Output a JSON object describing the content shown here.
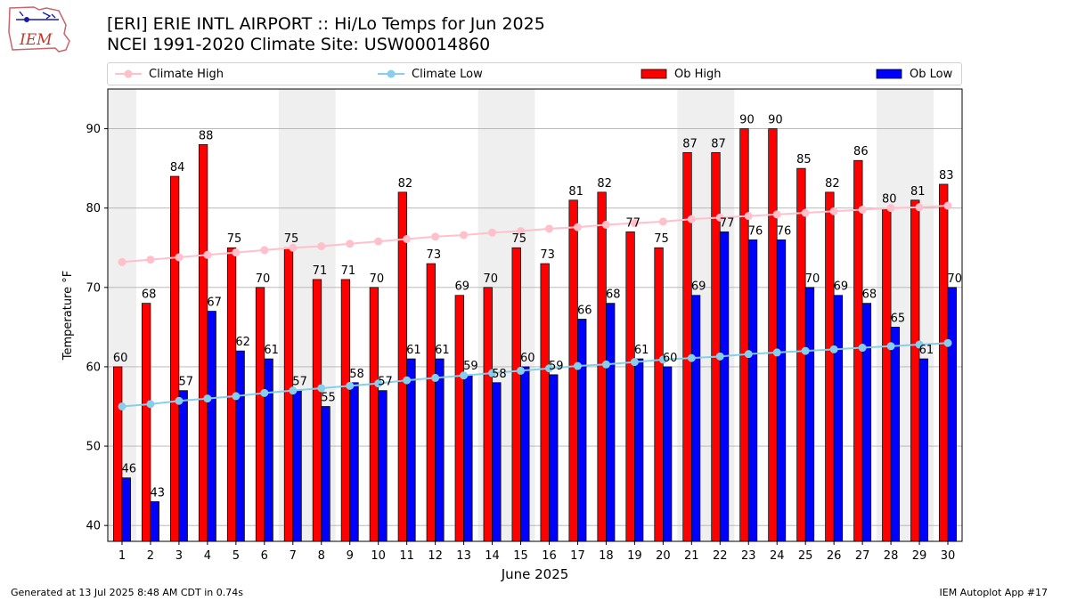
{
  "header": {
    "logo_text": "IEM",
    "title_line1": "[ERI] ERIE INTL AIRPORT :: Hi/Lo Temps for Jun 2025",
    "title_line2": "NCEI 1991-2020 Climate Site: USW00014860"
  },
  "legend": {
    "items": [
      {
        "label": "Climate High",
        "kind": "line-marker",
        "color": "#ffc0cb"
      },
      {
        "label": "Climate Low",
        "kind": "line-marker",
        "color": "#87ceeb"
      },
      {
        "label": "Ob High",
        "kind": "bar",
        "color": "#ff0000"
      },
      {
        "label": "Ob Low",
        "kind": "bar",
        "color": "#0000ff"
      }
    ],
    "placement": "top, horizontal"
  },
  "footer": {
    "left": "Generated at 13 Jul 2025 8:48 AM CDT in 0.74s",
    "right": "IEM Autoplot App #17"
  },
  "chart_data": {
    "type": "bar",
    "title": "[ERI] ERIE INTL AIRPORT :: Hi/Lo Temps for Jun 2025",
    "subtitle": "NCEI 1991-2020 Climate Site: USW00014860",
    "xlabel": "June 2025",
    "ylabel": "Temperature °F",
    "categories": [
      "1",
      "2",
      "3",
      "4",
      "5",
      "6",
      "7",
      "8",
      "9",
      "10",
      "11",
      "12",
      "13",
      "14",
      "15",
      "16",
      "17",
      "18",
      "19",
      "20",
      "21",
      "22",
      "23",
      "24",
      "25",
      "26",
      "27",
      "28",
      "29",
      "30"
    ],
    "ylim": [
      38,
      95
    ],
    "yticks": [
      40,
      50,
      60,
      70,
      80,
      90
    ],
    "grid": "horizontal",
    "weekend_shading": [
      [
        1,
        1
      ],
      [
        7,
        8
      ],
      [
        14,
        15
      ],
      [
        21,
        22
      ],
      [
        28,
        29
      ]
    ],
    "series": [
      {
        "name": "Ob High",
        "type": "bar",
        "color": "#ff0000",
        "values": [
          60,
          68,
          84,
          88,
          75,
          70,
          75,
          71,
          71,
          70,
          82,
          73,
          69,
          70,
          75,
          73,
          81,
          82,
          77,
          75,
          87,
          87,
          90,
          90,
          85,
          82,
          86,
          80,
          81,
          83
        ]
      },
      {
        "name": "Ob Low",
        "type": "bar",
        "color": "#0000ff",
        "values": [
          46,
          43,
          57,
          67,
          62,
          61,
          57,
          55,
          58,
          57,
          61,
          61,
          59,
          58,
          60,
          59,
          66,
          68,
          61,
          60,
          69,
          77,
          76,
          76,
          70,
          69,
          68,
          65,
          61,
          70
        ]
      },
      {
        "name": "Climate High",
        "type": "line",
        "color": "#ffc0cb",
        "values": [
          73.2,
          73.5,
          73.8,
          74.1,
          74.4,
          74.7,
          75.0,
          75.2,
          75.5,
          75.8,
          76.1,
          76.4,
          76.6,
          76.9,
          77.1,
          77.4,
          77.6,
          77.9,
          78.1,
          78.3,
          78.6,
          78.8,
          79.0,
          79.2,
          79.4,
          79.6,
          79.8,
          80.0,
          80.1,
          80.3
        ]
      },
      {
        "name": "Climate Low",
        "type": "line",
        "color": "#87ceeb",
        "values": [
          55.0,
          55.3,
          55.7,
          56.0,
          56.3,
          56.7,
          57.0,
          57.3,
          57.6,
          57.9,
          58.3,
          58.6,
          58.9,
          59.2,
          59.5,
          59.8,
          60.1,
          60.3,
          60.6,
          60.9,
          61.1,
          61.3,
          61.6,
          61.8,
          62.0,
          62.2,
          62.4,
          62.6,
          62.8,
          63.0
        ]
      }
    ]
  }
}
